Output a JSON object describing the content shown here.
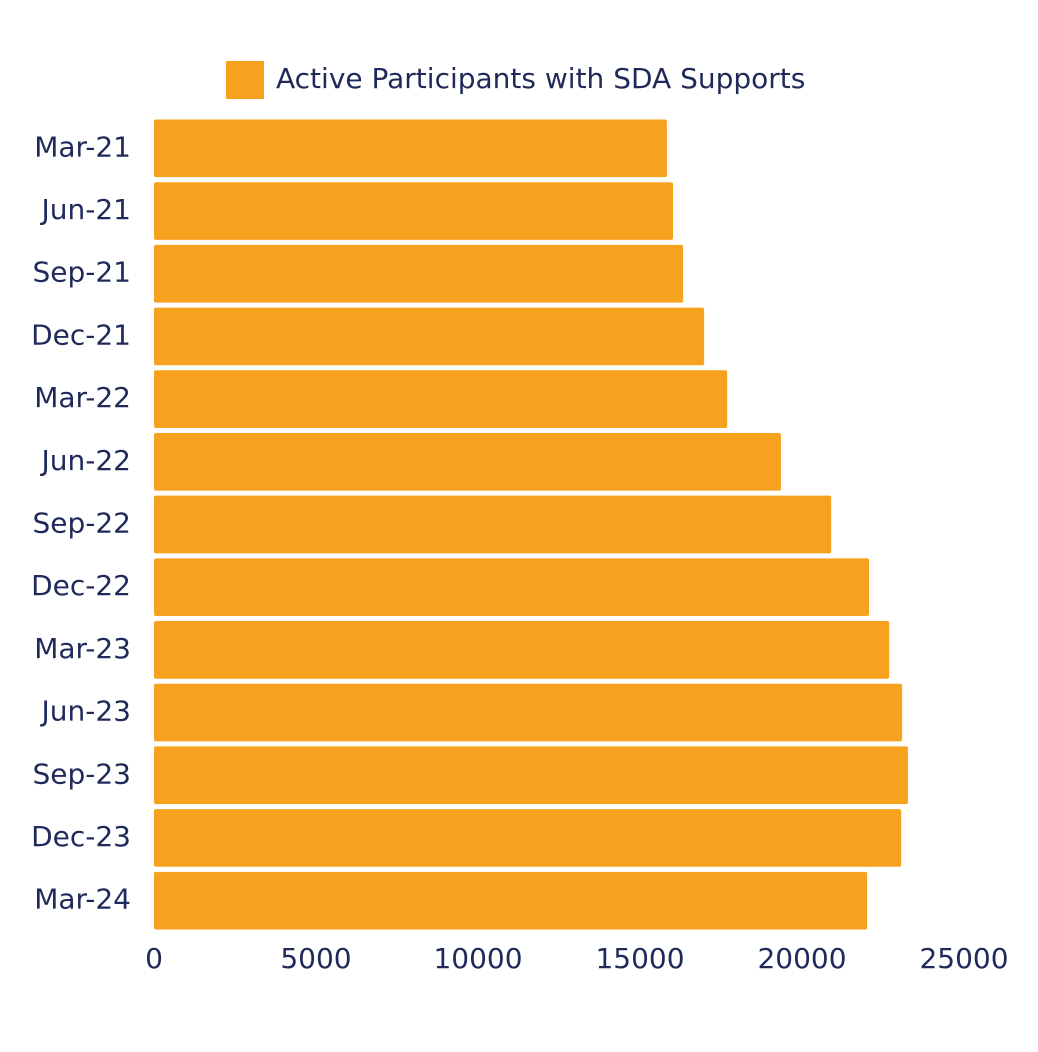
{
  "chart_data": {
    "type": "bar",
    "orientation": "horizontal",
    "categories": [
      "Mar-21",
      "Jun-21",
      "Sep-21",
      "Dec-21",
      "Mar-22",
      "Jun-22",
      "Sep-22",
      "Dec-22",
      "Mar-23",
      "Jun-23",
      "Sep-23",
      "Dec-23",
      "Mar-24"
    ],
    "series": [
      {
        "name": "Active Participants with SDA Supports",
        "color": "#f7a21e",
        "values": [
          15830,
          16020,
          16330,
          16980,
          17690,
          19350,
          20900,
          22070,
          22690,
          23090,
          23270,
          23060,
          22010
        ]
      }
    ],
    "xlim": [
      0,
      25000
    ],
    "xticks": [
      0,
      5000,
      10000,
      15000,
      20000,
      25000
    ],
    "grid": false,
    "legend": "top"
  }
}
